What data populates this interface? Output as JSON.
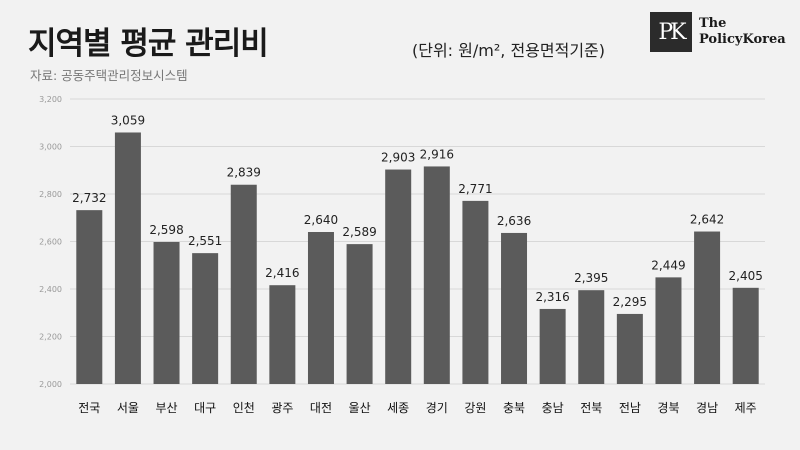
{
  "header": {
    "title": "지역별 평균 관리비",
    "unit": "(단위: 원/m², 전용면적기준)",
    "source": "자료: 공동주택관리정보시스템",
    "logo_mark": "PK",
    "logo_line1": "The",
    "logo_line2": "PolicyKorea"
  },
  "colors": {
    "bar": "#5b5b5b",
    "grid": "#d8d8d8",
    "background": "#f2f2f2"
  },
  "chart_data": {
    "type": "bar",
    "categories": [
      "전국",
      "서울",
      "부산",
      "대구",
      "인천",
      "광주",
      "대전",
      "울산",
      "세종",
      "경기",
      "강원",
      "충북",
      "충남",
      "전북",
      "전남",
      "경북",
      "경남",
      "제주"
    ],
    "values": [
      2732,
      3059,
      2598,
      2551,
      2839,
      2416,
      2640,
      2589,
      2903,
      2916,
      2771,
      2636,
      2316,
      2395,
      2295,
      2449,
      2642,
      2405
    ],
    "value_labels": [
      "2,732",
      "3,059",
      "2,598",
      "2,551",
      "2,839",
      "2,416",
      "2,640",
      "2,589",
      "2,903",
      "2,916",
      "2,771",
      "2,636",
      "2,316",
      "2,395",
      "2,295",
      "2,449",
      "2,642",
      "2,405"
    ],
    "yticks": [
      2000,
      2200,
      2400,
      2600,
      2800,
      3000,
      3200
    ],
    "ytick_labels": [
      "2,000",
      "2,200",
      "2,400",
      "2,600",
      "2,800",
      "3,000",
      "3,200"
    ],
    "ylim": [
      2000,
      3200
    ],
    "grid": true,
    "title": "지역별 평균 관리비"
  }
}
